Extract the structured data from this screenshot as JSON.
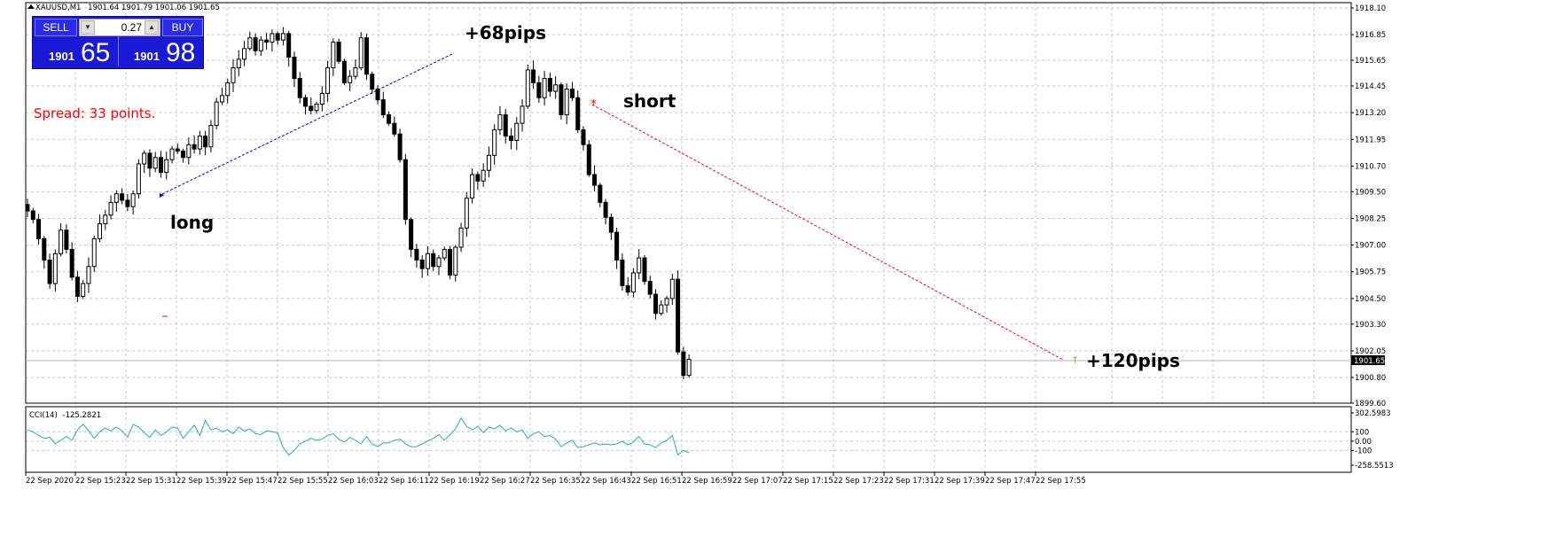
{
  "header": {
    "symbol": "XAUUSD,M1",
    "ohlc": "1901.64 1901.79 1901.06 1901.65"
  },
  "trade_panel": {
    "sell_label": "SELL",
    "buy_label": "BUY",
    "lot": "0.27",
    "sell_base": "1901",
    "sell_big": "65",
    "buy_base": "1901",
    "buy_big": "98"
  },
  "spread_label": "Spread: 33 points.",
  "annotations": {
    "long": "long",
    "short": "short",
    "pips1": "+68pips",
    "pips2": "+120pips"
  },
  "colors": {
    "background": "#ffffff",
    "grid": "#c0c0c0",
    "candle": "#000000",
    "cci": "#20b2aa",
    "long_line": "#0000cc",
    "short_line": "#ff0000",
    "spread_text": "#ff0000",
    "current_price_tag": "#000000"
  },
  "chart_data": [
    {
      "type": "candlestick",
      "symbol": "XAUUSD",
      "timeframe": "M1",
      "current_price": "1901.65",
      "ylim": [
        1899.6,
        1918.1
      ],
      "y_ticks": [
        "1918.10",
        "1916.85",
        "1915.65",
        "1914.45",
        "1913.20",
        "1911.95",
        "1910.70",
        "1909.50",
        "1908.25",
        "1907.00",
        "1905.75",
        "1904.50",
        "1903.30",
        "1902.05",
        "1900.80",
        "1899.60"
      ],
      "x_ticks": [
        "22 Sep 2020",
        "22 Sep 15:23",
        "22 Sep 15:31",
        "22 Sep 15:39",
        "22 Sep 15:47",
        "22 Sep 15:55",
        "22 Sep 16:03",
        "22 Sep 16:11",
        "22 Sep 16:19",
        "22 Sep 16:27",
        "22 Sep 16:35",
        "22 Sep 16:43",
        "22 Sep 16:51",
        "22 Sep 16:59",
        "22 Sep 17:07",
        "22 Sep 17:15",
        "22 Sep 17:23",
        "22 Sep 17:31",
        "22 Sep 17:39",
        "22 Sep 17:47",
        "22 Sep 17:55"
      ],
      "grid": true,
      "close_path": [
        1908.6,
        1908.2,
        1907.3,
        1906.3,
        1905.2,
        1906.6,
        1907.7,
        1906.8,
        1905.5,
        1904.6,
        1905.2,
        1906.0,
        1907.3,
        1908.0,
        1908.4,
        1909.0,
        1909.4,
        1909.1,
        1908.8,
        1909.4,
        1910.8,
        1911.3,
        1910.6,
        1911.1,
        1910.4,
        1911.0,
        1911.5,
        1911.4,
        1911.1,
        1911.7,
        1911.5,
        1912.1,
        1911.6,
        1912.6,
        1913.7,
        1914.0,
        1914.6,
        1915.3,
        1915.7,
        1916.2,
        1916.7,
        1916.1,
        1916.6,
        1916.5,
        1916.9,
        1916.6,
        1916.9,
        1915.8,
        1914.8,
        1913.9,
        1913.5,
        1913.3,
        1913.6,
        1914.1,
        1915.3,
        1916.5,
        1915.6,
        1914.6,
        1914.9,
        1915.3,
        1916.7,
        1915.0,
        1914.3,
        1913.8,
        1913.1,
        1912.7,
        1912.2,
        1911.0,
        1908.2,
        1906.8,
        1906.3,
        1905.9,
        1906.6,
        1906.0,
        1906.4,
        1906.8,
        1905.6,
        1906.9,
        1907.8,
        1909.2,
        1910.3,
        1910.0,
        1910.5,
        1911.2,
        1912.4,
        1913.1,
        1912.1,
        1911.9,
        1912.7,
        1913.5,
        1915.2,
        1914.6,
        1913.9,
        1914.8,
        1914.2,
        1914.5,
        1913.1,
        1914.3,
        1913.9,
        1912.4,
        1911.7,
        1910.3,
        1909.8,
        1909.0,
        1908.3,
        1907.6,
        1906.3,
        1905.1,
        1904.8,
        1905.7,
        1906.4,
        1905.3,
        1904.7,
        1903.8,
        1904.2,
        1904.5,
        1905.4,
        1902.0,
        1900.9,
        1901.65
      ],
      "cci_name": "CCI(14)",
      "cci_value": "-125.2821",
      "cci_ylim": [
        -258.5513,
        302.5983
      ],
      "cci_ticks": [
        "302.5983",
        "100",
        "0.00",
        "-100",
        "-258.5513"
      ],
      "cci_values": [
        120,
        100,
        60,
        30,
        40,
        -30,
        10,
        50,
        10,
        120,
        180,
        110,
        30,
        100,
        140,
        110,
        150,
        110,
        40,
        180,
        150,
        90,
        40,
        120,
        60,
        100,
        150,
        140,
        30,
        100,
        170,
        60,
        220,
        120,
        140,
        100,
        120,
        80,
        150,
        110,
        130,
        80,
        70,
        110,
        100,
        90,
        -70,
        -150,
        -100,
        -30,
        0,
        30,
        10,
        20,
        60,
        80,
        20,
        -10,
        40,
        10,
        -30,
        50,
        -30,
        -60,
        -20,
        -20,
        10,
        20,
        -30,
        -60,
        -60,
        -30,
        0,
        30,
        70,
        10,
        70,
        130,
        250,
        160,
        120,
        160,
        90,
        150,
        130,
        170,
        110,
        140,
        100,
        120,
        30,
        80,
        100,
        50,
        60,
        20,
        -60,
        -20,
        10,
        -70,
        -60,
        -40,
        -20,
        -40,
        -30,
        -40,
        -30,
        0,
        -40,
        -10,
        50,
        -30,
        -40,
        -70,
        -20,
        10,
        60,
        -150,
        -100,
        -125
      ]
    }
  ]
}
